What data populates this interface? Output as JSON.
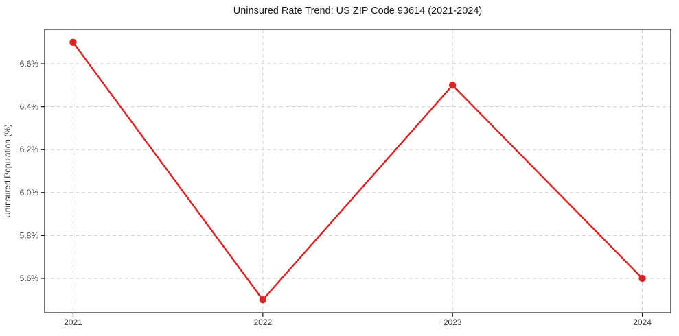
{
  "chart_data": {
    "type": "line",
    "title": "Uninsured Rate Trend: US ZIP Code 93614 (2021-2024)",
    "xlabel": "",
    "ylabel": "Uninsured Population (%)",
    "categories": [
      "2021",
      "2022",
      "2023",
      "2024"
    ],
    "series": [
      {
        "name": "Uninsured Population (%)",
        "values": [
          6.7,
          5.5,
          6.5,
          5.6
        ],
        "color": "#d62728",
        "marker": "circle",
        "line_width": 2.5,
        "marker_radius": 5.2
      }
    ],
    "y_ticks": [
      5.6,
      5.8,
      6.0,
      6.2,
      6.4,
      6.6
    ],
    "y_tick_labels": [
      "5.6%",
      "5.8%",
      "6.0%",
      "6.2%",
      "6.4%",
      "6.6%"
    ],
    "ylim": [
      5.44,
      6.76
    ],
    "grid": "dashed",
    "grid_axes": "both",
    "legend": "none",
    "colors": {
      "line": "#d62728",
      "grid": "#cdcdcd",
      "frame": "#1a1a1a",
      "tick": "#1a1a1a",
      "tick_label": "#3a3a3a",
      "title": "#1a1a1a",
      "background": "#ffffff"
    }
  }
}
